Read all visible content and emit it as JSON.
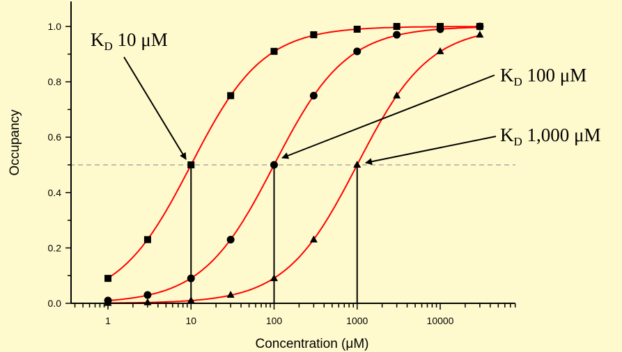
{
  "chart_data": {
    "type": "line",
    "xlabel": "Concentration (μM)",
    "ylabel": "Occupancy",
    "xscale": "log",
    "xlim": [
      0.36,
      80000
    ],
    "ylim": [
      0,
      1.09
    ],
    "x_ticks": [
      1,
      10,
      100,
      1000,
      10000
    ],
    "x_tick_labels": [
      "1",
      "10",
      "100",
      "1000",
      "10000"
    ],
    "y_ticks": [
      0,
      0.2,
      0.4,
      0.6,
      0.8,
      1.0
    ],
    "y_tick_labels": [
      "0.0",
      "0.2",
      "0.4",
      "0.6",
      "0.8",
      "1.0"
    ],
    "grid": false,
    "reference_line": {
      "y": 0.5,
      "style": "dashed",
      "color": "#999999"
    },
    "curve_color": "#FF0000",
    "marker_color": "#000000",
    "background": "#FFFACD",
    "x": [
      1,
      3,
      10,
      30,
      100,
      300,
      1000,
      3000,
      10000,
      30000
    ],
    "series": [
      {
        "kd": 10,
        "marker": "square",
        "values": [
          0.09,
          0.23,
          0.5,
          0.75,
          0.91,
          0.97,
          0.99,
          1.0,
          1.0,
          1.0
        ]
      },
      {
        "kd": 100,
        "marker": "circle",
        "values": [
          0.01,
          0.03,
          0.09,
          0.23,
          0.5,
          0.75,
          0.91,
          0.97,
          0.99,
          1.0
        ]
      },
      {
        "kd": 1000,
        "marker": "triangle",
        "values": [
          0.001,
          0.003,
          0.01,
          0.03,
          0.09,
          0.23,
          0.5,
          0.75,
          0.91,
          0.97
        ]
      }
    ],
    "annotations": [
      {
        "prefix": "K",
        "sub": "D",
        "text": " 10 μM",
        "points_to": [
          10,
          0.5
        ]
      },
      {
        "prefix": "K",
        "sub": "D",
        "text": " 100 μM",
        "points_to": [
          100,
          0.5
        ]
      },
      {
        "prefix": "K",
        "sub": "D",
        "text": " 1,000 μM",
        "points_to": [
          1000,
          0.5
        ]
      }
    ]
  }
}
